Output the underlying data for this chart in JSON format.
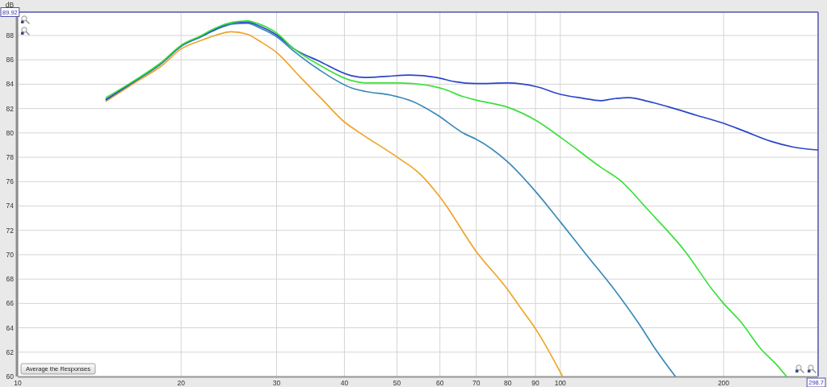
{
  "chart_data": {
    "type": "line",
    "ylabel": "dB",
    "log": "x",
    "grid": true,
    "xlim": [
      10,
      298.7
    ],
    "ylim": [
      60,
      89.92
    ],
    "xticks": [
      10,
      20,
      30,
      40,
      50,
      60,
      70,
      80,
      90,
      100,
      200,
      298.7
    ],
    "yticks": [
      60,
      62,
      64,
      66,
      68,
      70,
      72,
      74,
      76,
      78,
      80,
      82,
      84,
      86,
      88,
      89.92
    ],
    "annotations": [
      "Average the Responses"
    ],
    "series": [
      {
        "color": "#f0a428",
        "x": [
          14.55,
          16.4,
          18.4,
          20,
          21.8,
          23.1,
          24.75,
          26.5,
          28,
          30,
          33.3,
          36.5,
          40,
          42.4,
          50.1,
          54.9,
          60.1,
          69.9,
          80.1,
          84,
          90.4,
          101
        ],
        "values": [
          82.6,
          84.1,
          85.5,
          86.9,
          87.6,
          88.0,
          88.3,
          88.1,
          87.5,
          86.6,
          84.5,
          82.7,
          80.9,
          80.1,
          78.0,
          76.7,
          74.7,
          70.3,
          67.1,
          65.8,
          63.8,
          60.0
        ]
      },
      {
        "color": "#3a8ab8",
        "x": [
          14.55,
          16.4,
          18.4,
          20,
          21.8,
          23.1,
          25,
          26.5,
          28,
          30,
          32.3,
          35.9,
          41.2,
          43.8,
          48.7,
          53.3,
          59.2,
          66.8,
          69.9,
          80.1,
          90.4,
          100.4,
          111.7,
          126,
          139.3,
          150,
          163
        ],
        "values": [
          82.7,
          84.2,
          85.7,
          87.1,
          87.9,
          88.45,
          88.95,
          89.0,
          88.6,
          87.9,
          86.7,
          85.2,
          83.7,
          83.4,
          83.1,
          82.6,
          81.5,
          79.9,
          79.5,
          77.6,
          75.1,
          72.6,
          70.0,
          67.1,
          64.4,
          62.2,
          60.0
        ]
      },
      {
        "color": "#2a46c8",
        "x": [
          14.55,
          16.4,
          18.4,
          20,
          21.8,
          23.1,
          25,
          26.5,
          28,
          30,
          32.3,
          35.9,
          41.2,
          43.8,
          48,
          52.4,
          59.2,
          64,
          69.9,
          80.1,
          90.4,
          100.4,
          110,
          118.6,
          125,
          133.8,
          145,
          158,
          178.3,
          199.7,
          217,
          244.8,
          268,
          298.7
        ],
        "values": [
          82.75,
          84.25,
          85.75,
          87.15,
          87.95,
          88.5,
          89.05,
          89.1,
          88.75,
          88.05,
          86.9,
          85.9,
          84.7,
          84.55,
          84.65,
          84.75,
          84.55,
          84.2,
          84.05,
          84.1,
          83.8,
          83.15,
          82.85,
          82.65,
          82.8,
          82.9,
          82.6,
          82.15,
          81.45,
          80.8,
          80.2,
          79.3,
          78.85,
          78.6
        ]
      },
      {
        "color": "#3ce03c",
        "x": [
          14.55,
          16.4,
          18.4,
          20,
          21.8,
          23.1,
          25,
          26.5,
          28,
          30,
          32.3,
          35.9,
          41.2,
          43.8,
          50.1,
          54.9,
          61,
          66,
          69.9,
          80.1,
          90.4,
          100.4,
          118.6,
          129.8,
          144.3,
          170.4,
          190.9,
          200,
          215,
          235,
          250,
          261.3
        ],
        "values": [
          82.9,
          84.3,
          85.8,
          87.2,
          88.0,
          88.6,
          89.1,
          89.2,
          88.9,
          88.2,
          86.9,
          85.6,
          84.3,
          84.1,
          84.1,
          84.0,
          83.6,
          83.0,
          82.7,
          82.1,
          81.0,
          79.6,
          77.2,
          76.0,
          73.8,
          70.2,
          67.1,
          66.0,
          64.5,
          62.2,
          61.0,
          60.0
        ]
      }
    ]
  }
}
